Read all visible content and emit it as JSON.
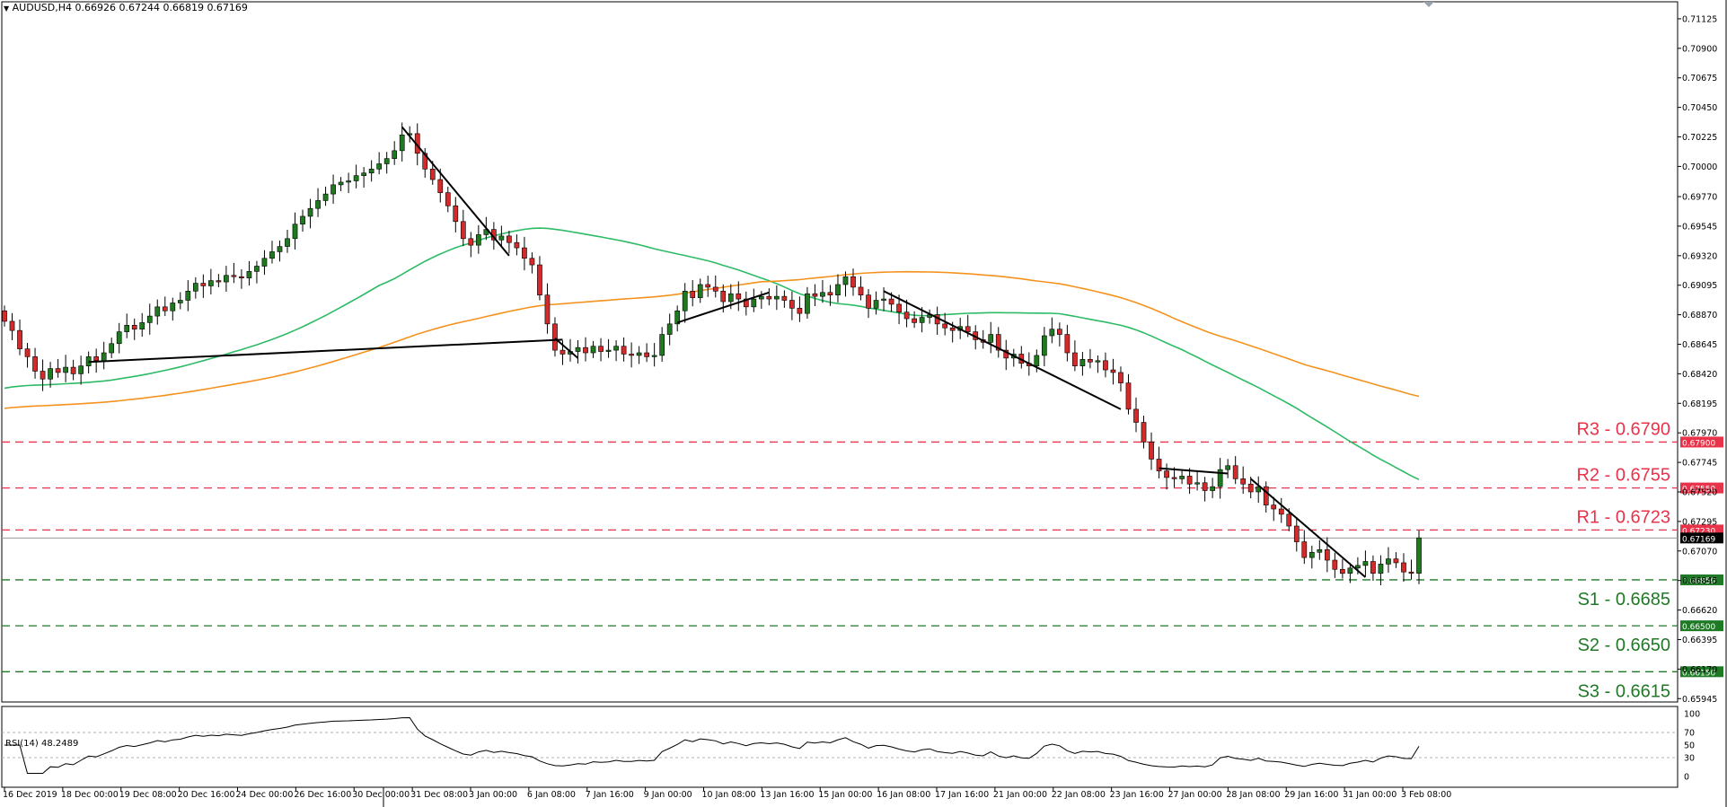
{
  "header": {
    "symbol_timeframe": "AUDUSD,H4",
    "ohlc": "0.66926 0.67244 0.66819 0.67169"
  },
  "rsi_header": "RSI(14) 48.2489",
  "colors": {
    "bull": "#1f7a1f",
    "bear": "#d42a2a",
    "wick": "#000000",
    "ma_fast": "#2dbb66",
    "ma_slow": "#f5921e",
    "resistance": "#e8334a",
    "support": "#1e7a24",
    "trendline": "#000000",
    "rsi_line": "#000000"
  },
  "chart_data": {
    "type": "candlestick",
    "symbol": "AUDUSD",
    "timeframe": "H4",
    "ylim": [
      0.6594,
      0.7121
    ],
    "y_ticks": [
      "0.71125",
      "0.70900",
      "0.70675",
      "0.70450",
      "0.70225",
      "0.70000",
      "0.69770",
      "0.69545",
      "0.69320",
      "0.69095",
      "0.68870",
      "0.68645",
      "0.68420",
      "0.68195",
      "0.67970",
      "0.67745",
      "0.67520",
      "0.67295",
      "0.67070",
      "0.66845",
      "0.66620",
      "0.66395",
      "0.66170",
      "0.65945"
    ],
    "x_labels": [
      "16 Dec 2019",
      "18 Dec 00:00",
      "19 Dec 08:00",
      "20 Dec 16:00",
      "24 Dec 00:00",
      "26 Dec 16:00",
      "30 Dec 00:00",
      "31 Dec 08:00",
      "3 Jan 00:00",
      "6 Jan 08:00",
      "7 Jan 16:00",
      "9 Jan 00:00",
      "10 Jan 08:00",
      "13 Jan 16:00",
      "15 Jan 00:00",
      "16 Jan 08:00",
      "17 Jan 16:00",
      "21 Jan 00:00",
      "22 Jan 08:00",
      "23 Jan 16:00",
      "27 Jan 00:00",
      "28 Jan 08:00",
      "29 Jan 16:00",
      "31 Jan 00:00",
      "3 Feb 08:00"
    ],
    "current_price": {
      "value": 0.67169,
      "label": "0.67169"
    },
    "levels": [
      {
        "name": "R3 - 0.6790",
        "value": 0.679,
        "tag": "0.67900",
        "kind": "resistance"
      },
      {
        "name": "R2 - 0.6755",
        "value": 0.6755,
        "tag": "0.67550",
        "kind": "resistance"
      },
      {
        "name": "R1 - 0.6723",
        "value": 0.6723,
        "tag": "0.67230",
        "kind": "resistance"
      },
      {
        "name": "S1 - 0.6685",
        "value": 0.6685,
        "tag": "0.66850",
        "kind": "support"
      },
      {
        "name": "S2 - 0.6650",
        "value": 0.665,
        "tag": "0.66500",
        "kind": "support"
      },
      {
        "name": "S3 - 0.6615",
        "value": 0.6615,
        "tag": "0.66150",
        "kind": "support"
      }
    ],
    "closes": [
      0.6882,
      0.6875,
      0.6861,
      0.6855,
      0.6844,
      0.6838,
      0.6846,
      0.6843,
      0.6847,
      0.6842,
      0.6848,
      0.6855,
      0.6852,
      0.6858,
      0.6865,
      0.6874,
      0.6879,
      0.6876,
      0.6881,
      0.6886,
      0.6893,
      0.689,
      0.6896,
      0.6898,
      0.6905,
      0.6911,
      0.6909,
      0.6913,
      0.6912,
      0.6917,
      0.6916,
      0.6915,
      0.692,
      0.6924,
      0.693,
      0.6935,
      0.6939,
      0.6945,
      0.6956,
      0.6962,
      0.6968,
      0.6974,
      0.6979,
      0.6986,
      0.6988,
      0.6989,
      0.6993,
      0.6995,
      0.6998,
      0.7002,
      0.7006,
      0.7012,
      0.7024,
      0.7025,
      0.701,
      0.6998,
      0.699,
      0.698,
      0.697,
      0.6958,
      0.6945,
      0.694,
      0.6948,
      0.6952,
      0.6944,
      0.6947,
      0.6942,
      0.6938,
      0.693,
      0.6925,
      0.6902,
      0.688,
      0.686,
      0.6857,
      0.6859,
      0.6862,
      0.6858,
      0.6863,
      0.6859,
      0.686,
      0.6863,
      0.6857,
      0.6856,
      0.6858,
      0.6855,
      0.6856,
      0.6872,
      0.688,
      0.689,
      0.6905,
      0.69,
      0.691,
      0.6908,
      0.6905,
      0.6897,
      0.6903,
      0.6899,
      0.6893,
      0.6899,
      0.6901,
      0.6899,
      0.6901,
      0.6898,
      0.6892,
      0.6888,
      0.6903,
      0.6901,
      0.6904,
      0.6902,
      0.691,
      0.6916,
      0.6908,
      0.6902,
      0.6892,
      0.6898,
      0.6899,
      0.6895,
      0.6889,
      0.6884,
      0.6881,
      0.6885,
      0.6887,
      0.688,
      0.6877,
      0.6875,
      0.6878,
      0.6874,
      0.6868,
      0.6866,
      0.6872,
      0.686,
      0.6854,
      0.6857,
      0.685,
      0.6848,
      0.6856,
      0.6871,
      0.6876,
      0.6872,
      0.6858,
      0.6848,
      0.6853,
      0.6851,
      0.6852,
      0.6845,
      0.6843,
      0.6835,
      0.6815,
      0.6805,
      0.679,
      0.6777,
      0.6768,
      0.6763,
      0.6762,
      0.6764,
      0.6758,
      0.6759,
      0.6753,
      0.6756,
      0.6769,
      0.6772,
      0.6762,
      0.6758,
      0.6752,
      0.6756,
      0.6742,
      0.6739,
      0.6735,
      0.6726,
      0.6714,
      0.6702,
      0.6706,
      0.6708,
      0.67,
      0.6693,
      0.669,
      0.6694,
      0.6696,
      0.6699,
      0.669,
      0.6697,
      0.6701,
      0.6698,
      0.6691,
      0.669,
      0.6717
    ]
  }
}
